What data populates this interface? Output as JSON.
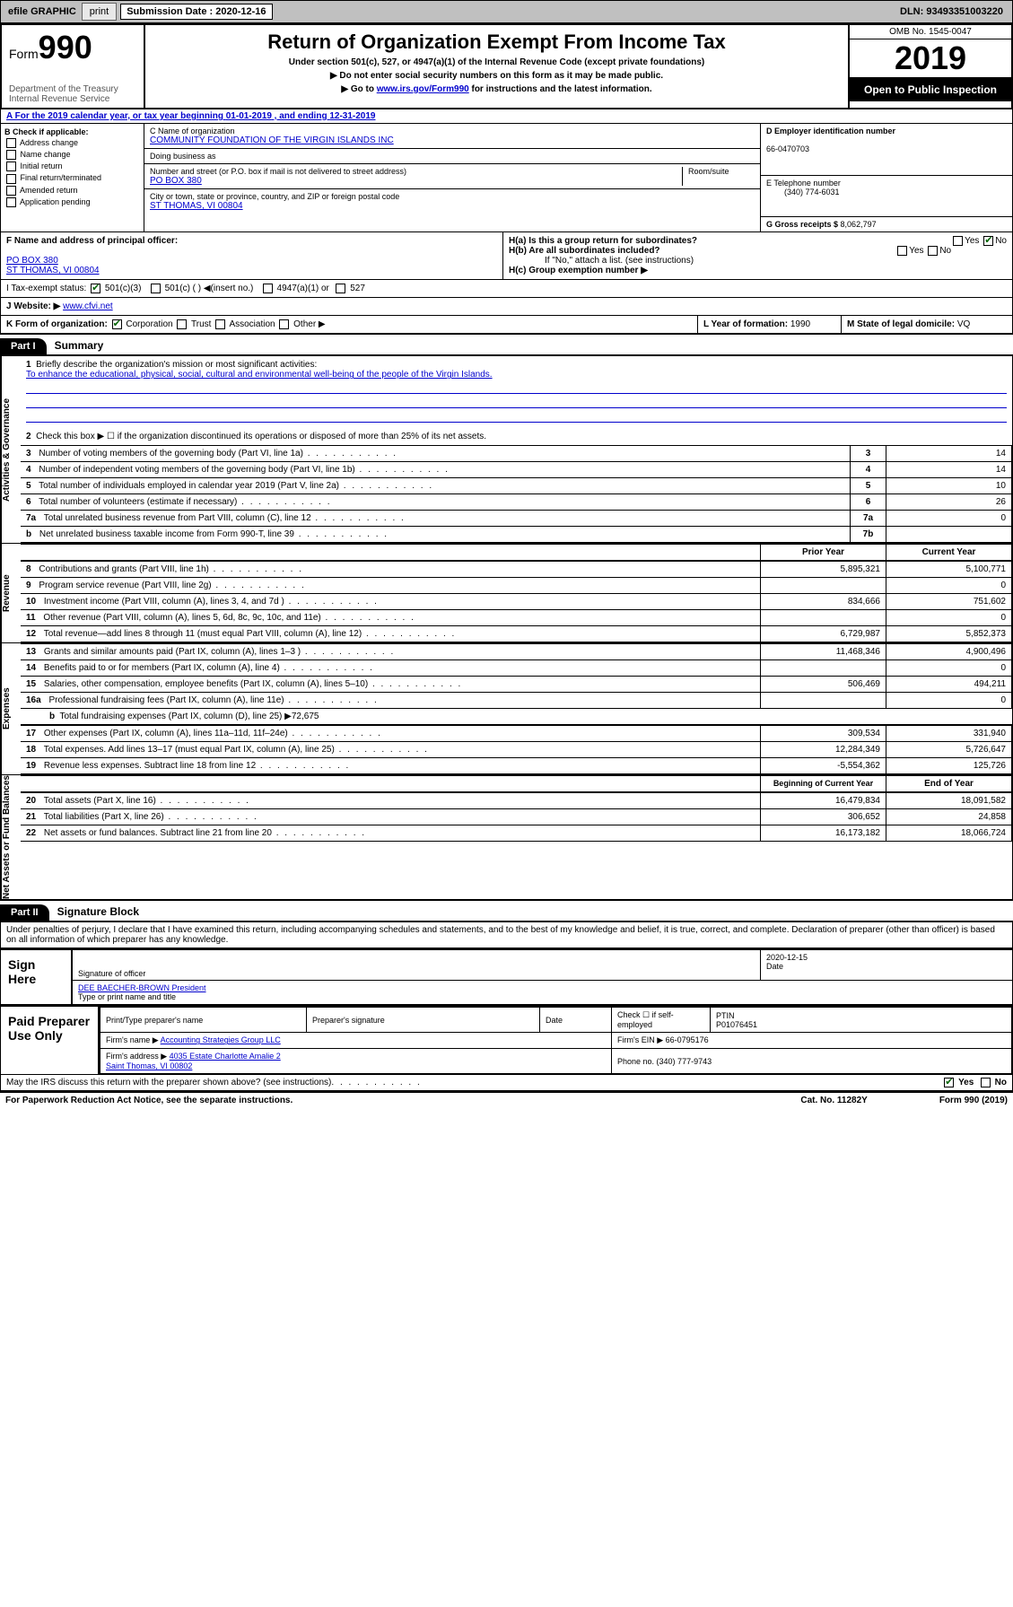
{
  "topbar": {
    "efile_label": "efile GRAPHIC",
    "print_label": "print",
    "submission_label": "Submission Date : 2020-12-16",
    "dln": "DLN: 93493351003220"
  },
  "header": {
    "form_word": "Form",
    "form_number": "990",
    "dept": "Department of the Treasury\nInternal Revenue Service",
    "title": "Return of Organization Exempt From Income Tax",
    "subtitle": "Under section 501(c), 527, or 4947(a)(1) of the Internal Revenue Code (except private foundations)",
    "note1": "▶ Do not enter social security numbers on this form as it may be made public.",
    "note2_pre": "▶ Go to ",
    "note2_link": "www.irs.gov/Form990",
    "note2_post": " for instructions and the latest information.",
    "omb": "OMB No. 1545-0047",
    "year": "2019",
    "open": "Open to Public Inspection"
  },
  "section_a": {
    "text_pre": "A For the 2019 calendar year, or tax year beginning ",
    "begin": "01-01-2019",
    "text_mid": " , and ending ",
    "end": "12-31-2019"
  },
  "col_b": {
    "label": "B Check if applicable:",
    "opts": [
      "Address change",
      "Name change",
      "Initial return",
      "Final return/terminated",
      "Amended return",
      "Application pending"
    ]
  },
  "col_c": {
    "name_label": "C Name of organization",
    "name": "COMMUNITY FOUNDATION OF THE VIRGIN ISLANDS INC",
    "dba_label": "Doing business as",
    "addr_label": "Number and street (or P.O. box if mail is not delivered to street address)",
    "addr": "PO BOX 380",
    "room_label": "Room/suite",
    "city_label": "City or town, state or province, country, and ZIP or foreign postal code",
    "city": "ST THOMAS, VI  00804"
  },
  "col_d": {
    "ein_label": "D Employer identification number",
    "ein": "66-0470703",
    "phone_label": "E Telephone number",
    "phone": "(340) 774-6031",
    "gross_label": "G Gross receipts $ ",
    "gross": "8,062,797"
  },
  "row_f": {
    "label": "F  Name and address of principal officer:",
    "addr1": "PO BOX 380",
    "addr2": "ST THOMAS, VI  00804"
  },
  "row_h": {
    "ha": "H(a)  Is this a group return for subordinates?",
    "hb": "H(b)  Are all subordinates included?",
    "hb_note": "If \"No,\" attach a list. (see instructions)",
    "hc": "H(c)  Group exemption number ▶"
  },
  "row_i": {
    "label": "I  Tax-exempt status:",
    "opt1": "501(c)(3)",
    "opt2": "501(c) (  ) ◀(insert no.)",
    "opt3": "4947(a)(1) or",
    "opt4": "527"
  },
  "row_j": {
    "label": "J  Website: ▶",
    "val": "www.cfvi.net"
  },
  "row_k": {
    "label": "K Form of organization:",
    "opts": [
      "Corporation",
      "Trust",
      "Association",
      "Other ▶"
    ],
    "l_label": "L Year of formation: ",
    "l_val": "1990",
    "m_label": "M State of legal domicile: ",
    "m_val": "VQ"
  },
  "part1": {
    "label": "Part I",
    "title": "Summary"
  },
  "summary": {
    "line1_label": "Briefly describe the organization's mission or most significant activities:",
    "line1_val": "To enhance the educational, physical, social, cultural and environmental well-being of the people of the Virgin Islands.",
    "line2": "Check this box ▶ ☐  if the organization discontinued its operations or disposed of more than 25% of its net assets.",
    "rows_ag": [
      {
        "n": "3",
        "t": "Number of voting members of the governing body (Part VI, line 1a)",
        "c": "3",
        "v": "14"
      },
      {
        "n": "4",
        "t": "Number of independent voting members of the governing body (Part VI, line 1b)",
        "c": "4",
        "v": "14"
      },
      {
        "n": "5",
        "t": "Total number of individuals employed in calendar year 2019 (Part V, line 2a)",
        "c": "5",
        "v": "10"
      },
      {
        "n": "6",
        "t": "Total number of volunteers (estimate if necessary)",
        "c": "6",
        "v": "26"
      },
      {
        "n": "7a",
        "t": "Total unrelated business revenue from Part VIII, column (C), line 12",
        "c": "7a",
        "v": "0"
      },
      {
        "n": "b",
        "t": "Net unrelated business taxable income from Form 990-T, line 39",
        "c": "7b",
        "v": ""
      }
    ],
    "hdr_prior": "Prior Year",
    "hdr_current": "Current Year",
    "rows_rev": [
      {
        "n": "8",
        "t": "Contributions and grants (Part VIII, line 1h)",
        "p": "5,895,321",
        "c": "5,100,771"
      },
      {
        "n": "9",
        "t": "Program service revenue (Part VIII, line 2g)",
        "p": "",
        "c": "0"
      },
      {
        "n": "10",
        "t": "Investment income (Part VIII, column (A), lines 3, 4, and 7d )",
        "p": "834,666",
        "c": "751,602"
      },
      {
        "n": "11",
        "t": "Other revenue (Part VIII, column (A), lines 5, 6d, 8c, 9c, 10c, and 11e)",
        "p": "",
        "c": "0"
      },
      {
        "n": "12",
        "t": "Total revenue—add lines 8 through 11 (must equal Part VIII, column (A), line 12)",
        "p": "6,729,987",
        "c": "5,852,373"
      }
    ],
    "rows_exp": [
      {
        "n": "13",
        "t": "Grants and similar amounts paid (Part IX, column (A), lines 1–3 )",
        "p": "11,468,346",
        "c": "4,900,496"
      },
      {
        "n": "14",
        "t": "Benefits paid to or for members (Part IX, column (A), line 4)",
        "p": "",
        "c": "0"
      },
      {
        "n": "15",
        "t": "Salaries, other compensation, employee benefits (Part IX, column (A), lines 5–10)",
        "p": "506,469",
        "c": "494,211"
      },
      {
        "n": "16a",
        "t": "Professional fundraising fees (Part IX, column (A), line 11e)",
        "p": "",
        "c": "0"
      }
    ],
    "line16b": "Total fundraising expenses (Part IX, column (D), line 25) ▶72,675",
    "rows_exp2": [
      {
        "n": "17",
        "t": "Other expenses (Part IX, column (A), lines 11a–11d, 11f–24e)",
        "p": "309,534",
        "c": "331,940"
      },
      {
        "n": "18",
        "t": "Total expenses. Add lines 13–17 (must equal Part IX, column (A), line 25)",
        "p": "12,284,349",
        "c": "5,726,647"
      },
      {
        "n": "19",
        "t": "Revenue less expenses. Subtract line 18 from line 12",
        "p": "-5,554,362",
        "c": "125,726"
      }
    ],
    "hdr_begin": "Beginning of Current Year",
    "hdr_end": "End of Year",
    "rows_na": [
      {
        "n": "20",
        "t": "Total assets (Part X, line 16)",
        "p": "16,479,834",
        "c": "18,091,582"
      },
      {
        "n": "21",
        "t": "Total liabilities (Part X, line 26)",
        "p": "306,652",
        "c": "24,858"
      },
      {
        "n": "22",
        "t": "Net assets or fund balances. Subtract line 21 from line 20",
        "p": "16,173,182",
        "c": "18,066,724"
      }
    ],
    "side_ag": "Activities & Governance",
    "side_rev": "Revenue",
    "side_exp": "Expenses",
    "side_na": "Net Assets or Fund Balances"
  },
  "part2": {
    "label": "Part II",
    "title": "Signature Block"
  },
  "sig": {
    "declaration": "Under penalties of perjury, I declare that I have examined this return, including accompanying schedules and statements, and to the best of my knowledge and belief, it is true, correct, and complete. Declaration of preparer (other than officer) is based on all information of which preparer has any knowledge.",
    "sign_here": "Sign Here",
    "sig_officer": "Signature of officer",
    "date": "2020-12-15",
    "date_label": "Date",
    "name": "DEE BAECHER-BROWN  President",
    "name_label": "Type or print name and title",
    "paid": "Paid Preparer Use Only",
    "prep_name_label": "Print/Type preparer's name",
    "prep_sig_label": "Preparer's signature",
    "prep_date_label": "Date",
    "self_emp": "Check ☐ if self-employed",
    "ptin_label": "PTIN",
    "ptin": "P01076451",
    "firm_name_label": "Firm's name    ▶ ",
    "firm_name": "Accounting Strategies Group LLC",
    "firm_ein_label": "Firm's EIN ▶ ",
    "firm_ein": "66-0795176",
    "firm_addr_label": "Firm's address ▶ ",
    "firm_addr": "4035 Estate Charlotte Amalie 2\nSaint Thomas, VI  00802",
    "firm_phone_label": "Phone no. ",
    "firm_phone": "(340) 777-9743",
    "discuss": "May the IRS discuss this return with the preparer shown above? (see instructions)",
    "yes": "Yes",
    "no": "No"
  },
  "footer": {
    "paperwork": "For Paperwork Reduction Act Notice, see the separate instructions.",
    "cat": "Cat. No. 11282Y",
    "form": "Form 990 (2019)"
  }
}
